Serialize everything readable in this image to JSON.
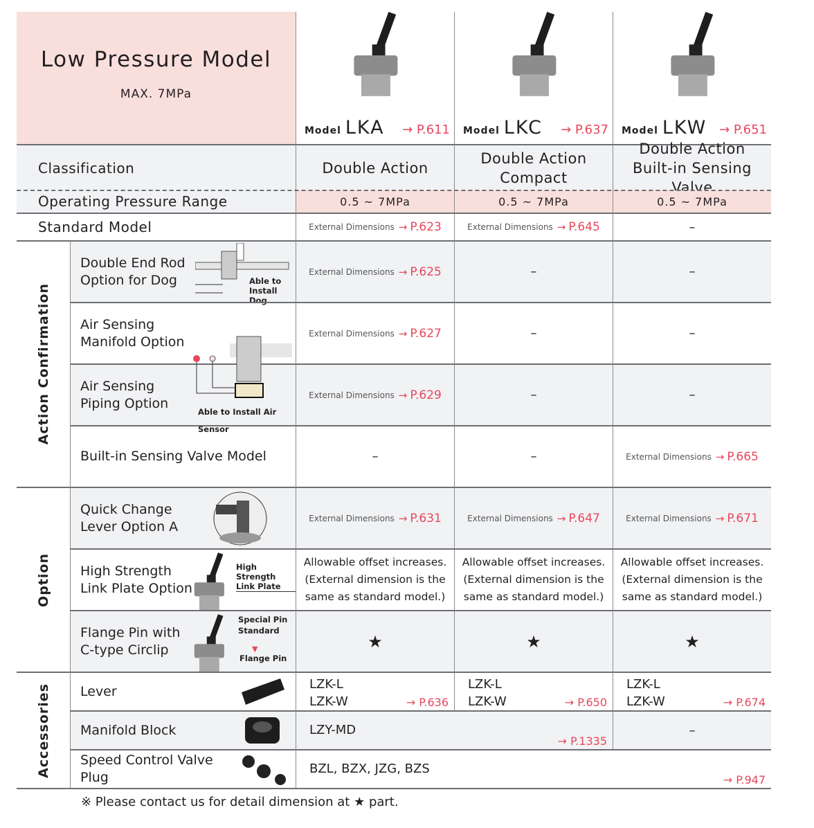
{
  "header": {
    "title": "Low Pressure Model",
    "subtitle": "MAX. 7MPa"
  },
  "models": [
    {
      "prefix": "Model",
      "name": "LKA",
      "page": "→ P.611"
    },
    {
      "prefix": "Model",
      "name": "LKC",
      "page": "→ P.637"
    },
    {
      "prefix": "Model",
      "name": "LKW",
      "page": "→ P.651"
    }
  ],
  "classification": {
    "label": "Classification",
    "values": [
      "Double Action",
      "Double Action\nCompact",
      "Double Action\nBuilt-in Sensing Valve"
    ]
  },
  "pressure": {
    "label": "Operating Pressure Range",
    "values": [
      "0.5 ~ 7MPa",
      "0.5 ~ 7MPa",
      "0.5 ~ 7MPa"
    ]
  },
  "ext": "External Dimensions",
  "dash": "–",
  "star": "★",
  "standard": {
    "label": "Standard Model",
    "pages": [
      "P.623",
      "P.645",
      null
    ]
  },
  "groups": {
    "action": "Action Confirmation",
    "option": "Option",
    "accessories": "Accessories"
  },
  "action_rows": [
    {
      "label": "Double End Rod\nOption for Dog",
      "callout": "Able to\nInstall Dog",
      "pages": [
        "P.625",
        null,
        null
      ]
    },
    {
      "label": "Air Sensing\nManifold Option",
      "pages": [
        "P.627",
        null,
        null
      ]
    },
    {
      "label": "Air Sensing\nPiping Option",
      "callout": "Able to Install Air Sensor",
      "pages": [
        "P.629",
        null,
        null
      ]
    },
    {
      "label": "Built-in Sensing Valve Model",
      "pages": [
        null,
        null,
        "P.665"
      ]
    }
  ],
  "option_rows": {
    "quick": {
      "label": "Quick Change\nLever Option A",
      "pages": [
        "P.631",
        "P.647",
        "P.671"
      ]
    },
    "high": {
      "label": "High Strength\nLink Plate Option",
      "callout": "High Strength\nLink Plate",
      "lines": [
        "Allowable offset increases.",
        "(External dimension is the",
        "same as standard model.)"
      ]
    },
    "flange": {
      "label": "Flange Pin with\nC-type Circlip",
      "callout_special": "Special Pin",
      "callout_standard": "Standard",
      "callout_flange": "Flange Pin"
    }
  },
  "accessories": {
    "lever": {
      "label": "Lever",
      "codes": [
        "LZK-L\nLZK-W",
        "LZK-L\nLZK-W",
        "LZK-L\nLZK-W"
      ],
      "pages": [
        "→ P.636",
        "→ P.650",
        "→ P.674"
      ]
    },
    "manifold": {
      "label": "Manifold Block",
      "code": "LZY-MD",
      "page": "→ P.1335"
    },
    "speed": {
      "label": "Speed Control Valve\nPlug",
      "code": "BZL, BZX, JZG, BZS",
      "page": "→ P.947"
    }
  },
  "footnote": "※ Please contact us for detail dimension at ★ part.",
  "colors": {
    "accent_red": "#e8475c",
    "pink": "#f9dfdc",
    "gray_row": "#f1f2f4"
  }
}
